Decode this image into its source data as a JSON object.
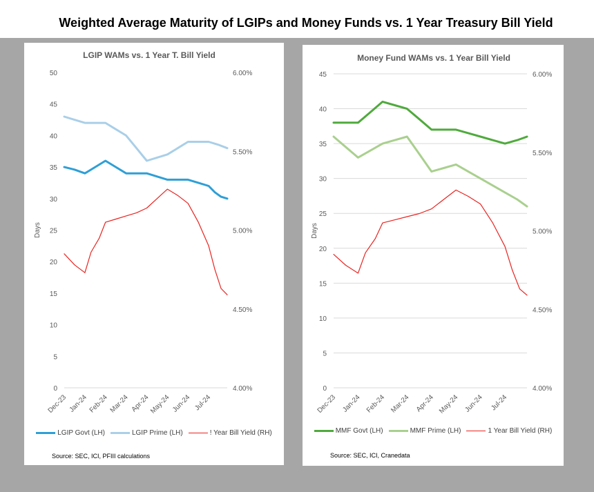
{
  "page": {
    "title": "Weighted Average Maturity of LGIPs and Money Funds vs. 1 Year Treasury Bill Yield"
  },
  "colors": {
    "lgip_govt": "#2e9fd6",
    "lgip_prime": "#a9cfe8",
    "mmf_govt": "#4faa3c",
    "mmf_prime": "#a9d08e",
    "yield": "#e8231f",
    "axis_text": "#595959",
    "gridline": "#d9d9d9"
  },
  "left_panel": {
    "source": "Source:  SEC, ICI, PFIII calculations"
  },
  "right_panel": {
    "source": "Source:  SEC, ICI, Cranedata"
  },
  "chart_data": [
    {
      "type": "line",
      "title": "LGIP WAMs vs. 1 Year T. Bill Yield",
      "ylabel": "Days",
      "ylim": [
        0,
        50
      ],
      "yticks": [
        "0",
        "5",
        "10",
        "15",
        "20",
        "25",
        "30",
        "35",
        "40",
        "45",
        "50"
      ],
      "y2lim": [
        4.0,
        6.0
      ],
      "y2ticks": [
        "4.00%",
        "4.50%",
        "5.00%",
        "5.50%",
        "6.00%"
      ],
      "grid": false,
      "legend_position": "bottom",
      "x_labels": [
        "Dec-23",
        "Jan-24",
        "Feb-24",
        "Mar-24",
        "Apr-24",
        "May-24",
        "Jun-24",
        "Jul-24"
      ],
      "x_range": [
        0,
        7.9
      ],
      "series": [
        {
          "name": "LGIP Govt (LH)",
          "axis": "left",
          "x": [
            0,
            0.5,
            1,
            1.5,
            2,
            2.5,
            3,
            3.5,
            4,
            4.5,
            5,
            5.5,
            6,
            6.5,
            7,
            7.3,
            7.6,
            7.9
          ],
          "y": [
            35,
            34.6,
            34,
            35,
            36,
            35,
            34,
            34,
            34,
            33.5,
            33,
            33,
            33,
            32.5,
            32,
            31,
            30.3,
            30
          ]
        },
        {
          "name": "LGIP Prime (LH)",
          "axis": "left",
          "x": [
            0,
            0.5,
            1,
            1.5,
            2,
            2.5,
            3,
            3.5,
            4,
            4.5,
            5,
            5.5,
            6,
            6.5,
            7,
            7.5,
            7.9
          ],
          "y": [
            43,
            42.5,
            42,
            42,
            42,
            41,
            40,
            38,
            36,
            36.5,
            37,
            38,
            39,
            39,
            39,
            38.5,
            38
          ]
        },
        {
          "name": "! Year Bill Yield (RH)",
          "axis": "right",
          "x": [
            0,
            0.5,
            1,
            1.3,
            1.7,
            2,
            2.5,
            3,
            3.5,
            4,
            4.5,
            5,
            5.5,
            6,
            6.5,
            7,
            7.3,
            7.6,
            7.9
          ],
          "y": [
            4.85,
            4.78,
            4.73,
            4.86,
            4.95,
            5.05,
            5.07,
            5.09,
            5.11,
            5.14,
            5.2,
            5.26,
            5.22,
            5.17,
            5.05,
            4.9,
            4.75,
            4.63,
            4.59
          ]
        }
      ]
    },
    {
      "type": "line",
      "title": "Money Fund WAMs vs. 1 Year Bill Yield",
      "ylabel": "Days",
      "ylim": [
        0,
        45
      ],
      "yticks": [
        "0",
        "5",
        "10",
        "15",
        "20",
        "25",
        "30",
        "35",
        "40",
        "45"
      ],
      "y2lim": [
        4.0,
        6.0
      ],
      "y2ticks": [
        "4.00%",
        "4.50%",
        "5.00%",
        "5.50%",
        "6.00%"
      ],
      "grid": true,
      "legend_position": "bottom",
      "x_labels": [
        "Dec-23",
        "Jan-24",
        "Feb-24",
        "Mar-24",
        "Apr-24",
        "May-24",
        "Jun-24",
        "Jul-24"
      ],
      "x_range": [
        0,
        7.9
      ],
      "series": [
        {
          "name": "MMF Govt (LH)",
          "axis": "left",
          "x": [
            0,
            0.5,
            1,
            1.5,
            2,
            2.5,
            3,
            3.5,
            4,
            4.5,
            5,
            5.5,
            6,
            6.5,
            7,
            7.5,
            7.9
          ],
          "y": [
            38,
            38,
            38,
            39.5,
            41,
            40.5,
            40,
            38.5,
            37,
            37,
            37,
            36.5,
            36,
            35.5,
            35,
            35.5,
            36
          ]
        },
        {
          "name": "MMF Prime (LH)",
          "axis": "left",
          "x": [
            0,
            0.5,
            1,
            1.5,
            2,
            2.5,
            3,
            3.5,
            4,
            4.5,
            5,
            5.5,
            6,
            6.5,
            7,
            7.5,
            7.9
          ],
          "y": [
            36,
            34.5,
            33,
            34,
            35,
            35.5,
            36,
            33.5,
            31,
            31.5,
            32,
            31,
            30,
            29,
            28,
            27,
            26
          ]
        },
        {
          "name": "1 Year Bill Yield (RH)",
          "axis": "right",
          "x": [
            0,
            0.5,
            1,
            1.3,
            1.7,
            2,
            2.5,
            3,
            3.5,
            4,
            4.5,
            5,
            5.5,
            6,
            6.5,
            7,
            7.3,
            7.6,
            7.9
          ],
          "y": [
            4.85,
            4.78,
            4.73,
            4.86,
            4.95,
            5.05,
            5.07,
            5.09,
            5.11,
            5.14,
            5.2,
            5.26,
            5.22,
            5.17,
            5.05,
            4.9,
            4.75,
            4.63,
            4.59
          ]
        }
      ]
    }
  ]
}
